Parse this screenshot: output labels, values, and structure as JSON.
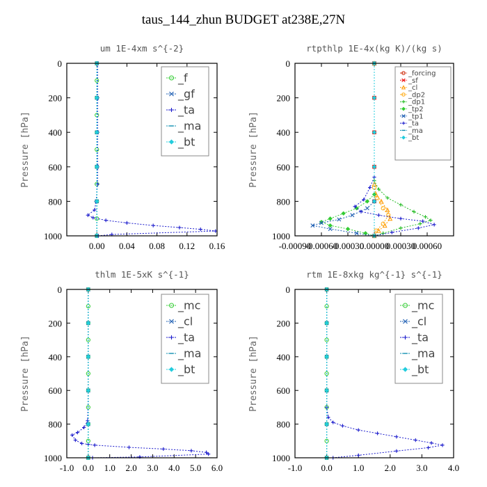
{
  "page": {
    "title": "taus_144_zhun  BUDGET at238E,27N"
  },
  "chart_data": [
    {
      "type": "line",
      "title": "um  1E-4xm s^{-2}",
      "ylabel": "Pressure [hPa]",
      "xlim": [
        -0.04,
        0.16
      ],
      "ylim": [
        1000,
        0
      ],
      "xticks": [
        "0.00",
        "0.04",
        "0.08",
        "0.12",
        "0.16"
      ],
      "xtick_values": [
        0.0,
        0.04,
        0.08,
        0.12,
        0.16
      ],
      "yticks": [
        "0",
        "200",
        "400",
        "600",
        "800",
        "1000"
      ],
      "ytick_values": [
        0,
        200,
        400,
        600,
        800,
        1000
      ],
      "legend_position": "top-right",
      "series": [
        {
          "name": "_f",
          "color": "#33cc33",
          "marker": "o",
          "x": [
            0,
            0,
            0,
            0,
            0,
            0,
            0,
            0,
            0,
            0,
            0
          ],
          "y": [
            0,
            100,
            200,
            300,
            400,
            500,
            600,
            700,
            800,
            900,
            1000
          ]
        },
        {
          "name": "_gf",
          "color": "#1e5fb3",
          "marker": "x",
          "x": [
            0,
            0,
            0,
            0,
            0,
            0
          ],
          "y": [
            0,
            200,
            400,
            600,
            800,
            1000
          ]
        },
        {
          "name": "_ta",
          "color": "#1a1acc",
          "marker": "+",
          "x": [
            0.001,
            0.001,
            0.001,
            0.001,
            0.001,
            -0.001,
            -0.003,
            -0.012,
            -0.005,
            0.012,
            0.04,
            0.075,
            0.11,
            0.138,
            0.158,
            0.02,
            0.002
          ],
          "y": [
            0,
            200,
            400,
            600,
            700,
            800,
            850,
            880,
            895,
            910,
            925,
            940,
            952,
            962,
            972,
            992,
            1000
          ]
        },
        {
          "name": "_ma",
          "color": "#0e8fb0",
          "marker": "-",
          "x": [
            0,
            0,
            0,
            0,
            0,
            0
          ],
          "y": [
            0,
            200,
            400,
            600,
            800,
            1000
          ]
        },
        {
          "name": "_bt",
          "color": "#22ccdd",
          "marker": "diamond",
          "x": [
            0,
            0,
            0,
            0,
            0,
            0
          ],
          "y": [
            0,
            200,
            400,
            600,
            800,
            1000
          ]
        }
      ]
    },
    {
      "type": "line",
      "title": "rtpthlp  1E-4x(kg K)/(kg s)",
      "ylabel": "Pressure [hPa]",
      "xlim": [
        -0.0009,
        0.0009
      ],
      "ylim": [
        1000,
        0
      ],
      "xticks": [
        "-0.00090",
        "-0.00060",
        "-0.00030",
        "0.00000",
        "0.00030",
        "0.00060"
      ],
      "xtick_values": [
        -0.0009,
        -0.0006,
        -0.0003,
        0.0,
        0.0003,
        0.0006
      ],
      "yticks": [
        "0",
        "200",
        "400",
        "600",
        "800",
        "1000"
      ],
      "ytick_values": [
        0,
        200,
        400,
        600,
        800,
        1000
      ],
      "legend_position": "top-right",
      "series": [
        {
          "name": "_forcing",
          "color": "#cc2200",
          "marker": "o",
          "x": [
            0,
            0,
            0,
            0,
            0,
            0
          ],
          "y": [
            0,
            200,
            400,
            600,
            800,
            1000
          ]
        },
        {
          "name": "_sf",
          "color": "#ee1111",
          "marker": "x",
          "x": [
            0,
            0,
            0,
            0,
            0,
            0
          ],
          "y": [
            0,
            200,
            400,
            600,
            800,
            1000
          ]
        },
        {
          "name": "_cl",
          "color": "#ff9900",
          "marker": "^",
          "x": [
            0,
            0,
            2e-05,
            8e-05,
            0.00015,
            0.00018,
            0.00012,
            5e-05,
            0
          ],
          "y": [
            0,
            700,
            760,
            800,
            850,
            900,
            940,
            970,
            1000
          ]
        },
        {
          "name": "_dp2",
          "color": "#ffaa11",
          "marker": "o",
          "x": [
            0,
            0,
            3e-05,
            0.0001,
            0.00016,
            0.0001,
            2e-05,
            0
          ],
          "y": [
            0,
            720,
            780,
            840,
            880,
            930,
            970,
            1000
          ]
        },
        {
          "name": "_dp1",
          "color": "#22bb22",
          "marker": "+",
          "x": [
            0,
            0,
            5e-05,
            0.00015,
            0.0003,
            0.00045,
            0.00058,
            0.00064,
            0.00052,
            0.0003,
            0.0001,
            0
          ],
          "y": [
            0,
            680,
            730,
            780,
            820,
            860,
            890,
            910,
            930,
            955,
            985,
            1000
          ]
        },
        {
          "name": "_tp2",
          "color": "#33cc33",
          "marker": "diamond",
          "x": [
            0,
            0,
            -8e-05,
            -0.0002,
            -0.00035,
            -0.0005,
            -0.0006,
            -0.0005,
            -0.0003,
            -0.0001,
            0
          ],
          "y": [
            0,
            760,
            800,
            840,
            870,
            900,
            920,
            940,
            960,
            985,
            1000
          ]
        },
        {
          "name": "_tp1",
          "color": "#1e5fb3",
          "marker": "x",
          "x": [
            0,
            0,
            -8e-05,
            -0.00025,
            -0.0004,
            -0.0006,
            -0.0007,
            -0.0005,
            -0.0002,
            0
          ],
          "y": [
            0,
            800,
            840,
            880,
            905,
            925,
            940,
            960,
            985,
            1000
          ]
        },
        {
          "name": "_ta",
          "color": "#1a1acc",
          "marker": "+",
          "x": [
            0,
            0,
            -5e-05,
            -0.00012,
            -0.00022,
            -0.00015,
            5e-05,
            0.0003,
            0.00055,
            0.00068,
            0.0005,
            0.0002,
            0
          ],
          "y": [
            0,
            660,
            720,
            790,
            830,
            860,
            880,
            900,
            915,
            935,
            955,
            980,
            1000
          ]
        },
        {
          "name": "_ma",
          "color": "#0e8fb0",
          "marker": "-",
          "x": [
            0,
            0,
            0,
            0,
            0,
            0
          ],
          "y": [
            0,
            200,
            400,
            600,
            800,
            1000
          ]
        },
        {
          "name": "_bt",
          "color": "#22ccdd",
          "marker": "diamond",
          "x": [
            0,
            0,
            0,
            0,
            0,
            0
          ],
          "y": [
            0,
            200,
            400,
            600,
            800,
            1000
          ]
        }
      ]
    },
    {
      "type": "line",
      "title": "thlm  1E-5xK s^{-1}",
      "ylabel": "Pressure [hPa]",
      "xlim": [
        -1.0,
        6.0
      ],
      "ylim": [
        1000,
        0
      ],
      "xticks": [
        "-1.0",
        "0.0",
        "1.0",
        "2.0",
        "3.0",
        "4.0",
        "5.0",
        "6.0"
      ],
      "xtick_values": [
        -1,
        0,
        1,
        2,
        3,
        4,
        5,
        6
      ],
      "yticks": [
        "0",
        "200",
        "400",
        "600",
        "800",
        "1000"
      ],
      "ytick_values": [
        0,
        200,
        400,
        600,
        800,
        1000
      ],
      "legend_position": "top-right",
      "series": [
        {
          "name": "_mc",
          "color": "#33cc33",
          "marker": "o",
          "x": [
            0,
            0,
            0,
            0,
            0,
            0,
            0,
            0,
            0,
            0,
            0
          ],
          "y": [
            0,
            100,
            200,
            300,
            400,
            500,
            600,
            700,
            800,
            900,
            1000
          ]
        },
        {
          "name": "_cl",
          "color": "#1e5fb3",
          "marker": "x",
          "x": [
            0,
            0,
            0,
            0,
            0,
            0
          ],
          "y": [
            0,
            200,
            400,
            600,
            800,
            1000
          ]
        },
        {
          "name": "_ta",
          "color": "#1a1acc",
          "marker": "+",
          "x": [
            0,
            0,
            -0.03,
            -0.2,
            -0.5,
            -0.75,
            -0.6,
            -0.3,
            0,
            0.3,
            1.9,
            3.5,
            4.8,
            5.5,
            5.6,
            2.4,
            0.2
          ],
          "y": [
            0,
            600,
            780,
            820,
            850,
            865,
            895,
            915,
            920,
            925,
            938,
            948,
            958,
            968,
            978,
            995,
            1000
          ]
        },
        {
          "name": "_ma",
          "color": "#0e8fb0",
          "marker": "-",
          "x": [
            0,
            0,
            0,
            0,
            0,
            0
          ],
          "y": [
            0,
            200,
            400,
            600,
            800,
            1000
          ]
        },
        {
          "name": "_bt",
          "color": "#22ccdd",
          "marker": "diamond",
          "x": [
            0,
            0,
            0,
            0,
            0,
            0
          ],
          "y": [
            0,
            200,
            400,
            600,
            800,
            1000
          ]
        }
      ]
    },
    {
      "type": "line",
      "title": "rtm  1E-8xkg kg^{-1} s^{-1}",
      "ylabel": "Pressure [hPa]",
      "xlim": [
        -1.0,
        4.0
      ],
      "ylim": [
        1000,
        0
      ],
      "xticks": [
        "-1.0",
        "0.0",
        "1.0",
        "2.0",
        "3.0",
        "4.0"
      ],
      "xtick_values": [
        -1,
        0,
        1,
        2,
        3,
        4
      ],
      "yticks": [
        "0",
        "200",
        "400",
        "600",
        "800",
        "1000"
      ],
      "ytick_values": [
        0,
        200,
        400,
        600,
        800,
        1000
      ],
      "legend_position": "top-right",
      "series": [
        {
          "name": "_mc",
          "color": "#33cc33",
          "marker": "o",
          "x": [
            0,
            0,
            0,
            0,
            0,
            0,
            0,
            0,
            0,
            0,
            0
          ],
          "y": [
            0,
            100,
            200,
            300,
            400,
            500,
            600,
            700,
            800,
            900,
            1000
          ]
        },
        {
          "name": "_cl",
          "color": "#1e5fb3",
          "marker": "x",
          "x": [
            0,
            0,
            0,
            0,
            0,
            0
          ],
          "y": [
            0,
            200,
            400,
            600,
            800,
            1000
          ]
        },
        {
          "name": "_ta",
          "color": "#1a1acc",
          "marker": "+",
          "x": [
            0,
            0,
            0.05,
            0.2,
            0.5,
            1.0,
            1.6,
            2.2,
            2.8,
            3.3,
            3.65,
            3.2,
            2.2,
            1.0,
            0.2
          ],
          "y": [
            0,
            700,
            760,
            790,
            810,
            835,
            855,
            875,
            895,
            912,
            925,
            940,
            960,
            985,
            1000
          ]
        },
        {
          "name": "_ma",
          "color": "#0e8fb0",
          "marker": "-",
          "x": [
            0,
            0,
            0,
            0,
            0,
            0
          ],
          "y": [
            0,
            200,
            400,
            600,
            800,
            1000
          ]
        },
        {
          "name": "_bt",
          "color": "#22ccdd",
          "marker": "diamond",
          "x": [
            0,
            0,
            0,
            0,
            0,
            0
          ],
          "y": [
            0,
            200,
            400,
            600,
            800,
            1000
          ]
        }
      ]
    }
  ]
}
